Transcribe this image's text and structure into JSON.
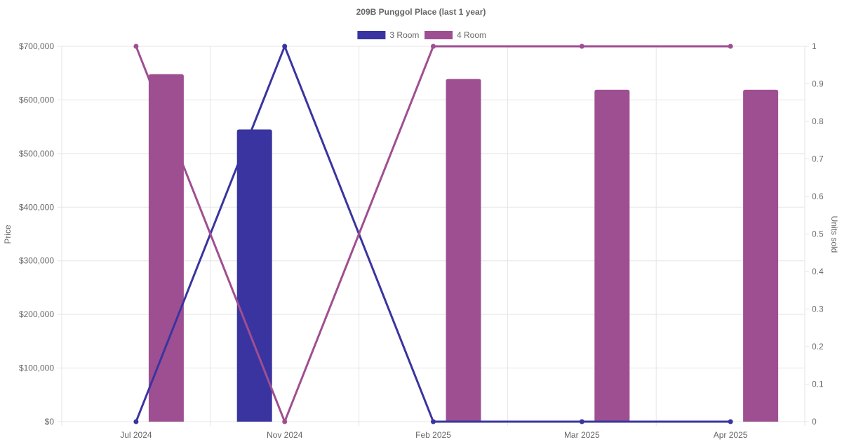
{
  "chart_data": {
    "type": "bar",
    "title": "209B Punggol Place (last 1 year)",
    "categories": [
      "Jul 2024",
      "Nov 2024",
      "Feb 2025",
      "Mar 2025",
      "Apr 2025"
    ],
    "y_left": {
      "label": "Price",
      "range": [
        0,
        700000
      ],
      "ticks": [
        "$0",
        "$100,000",
        "$200,000",
        "$300,000",
        "$400,000",
        "$500,000",
        "$600,000",
        "$700,000"
      ],
      "tick_values": [
        0,
        100000,
        200000,
        300000,
        400000,
        500000,
        600000,
        700000
      ]
    },
    "y_right": {
      "label": "Units sold",
      "range": [
        0,
        1
      ],
      "ticks": [
        "0",
        "0.1",
        "0.2",
        "0.3",
        "0.4",
        "0.5",
        "0.6",
        "0.7",
        "0.8",
        "0.9",
        "1"
      ],
      "tick_values": [
        0,
        0.1,
        0.2,
        0.3,
        0.4,
        0.5,
        0.6,
        0.7,
        0.8,
        0.9,
        1
      ]
    },
    "grid": true,
    "legend_position": "top-center",
    "series": [
      {
        "name": "3 Room",
        "color": "#3a34a0",
        "bar_values": [
          null,
          545000,
          null,
          null,
          null
        ],
        "line_values": [
          0,
          1,
          0,
          0,
          0
        ]
      },
      {
        "name": "4 Room",
        "color": "#9e4f91",
        "bar_values": [
          648000,
          null,
          639000,
          619000,
          619000
        ],
        "line_values": [
          1,
          0,
          1,
          1,
          1
        ]
      }
    ]
  }
}
